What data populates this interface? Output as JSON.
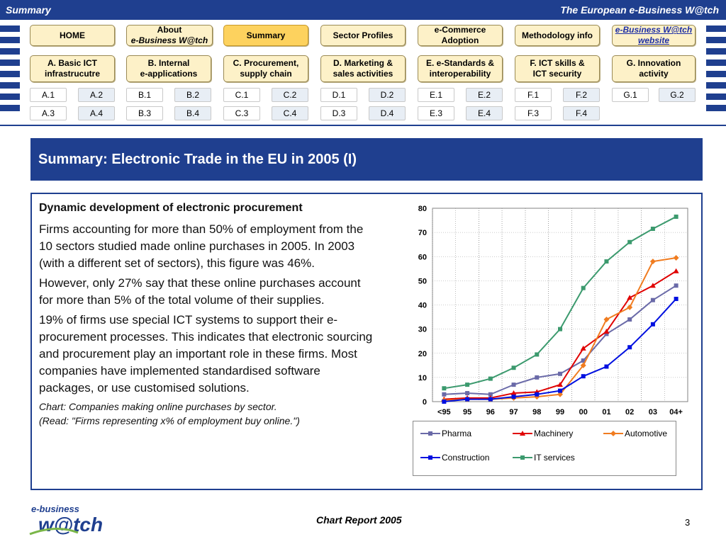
{
  "header": {
    "left_title": "Summary",
    "right_title": "The European e-Business W@tch"
  },
  "nav": {
    "top": [
      {
        "id": "home",
        "line1": "HOME"
      },
      {
        "id": "about",
        "line1": "About",
        "line2": "e-Business W@tch"
      },
      {
        "id": "summary",
        "line1": "Summary"
      },
      {
        "id": "sector",
        "line1": "Sector Profiles"
      },
      {
        "id": "ecommerce",
        "line1": "e-Commerce",
        "line2": "Adoption"
      },
      {
        "id": "method",
        "line1": "Methodology info"
      },
      {
        "id": "website",
        "line1": "e-Business W@tch",
        "line2": "website"
      }
    ],
    "modules": [
      {
        "id": "a",
        "line1": "A. Basic ICT",
        "line2": "infrastrucutre"
      },
      {
        "id": "b",
        "line1": "B. Internal",
        "line2": "e-applications"
      },
      {
        "id": "c",
        "line1": "C. Procurement,",
        "line2": "supply chain"
      },
      {
        "id": "d",
        "line1": "D. Marketing &",
        "line2": "sales activities"
      },
      {
        "id": "e",
        "line1": "E. e-Standards &",
        "line2": "interoperability"
      },
      {
        "id": "f",
        "line1": "F. ICT skills &",
        "line2": "ICT security"
      },
      {
        "id": "g",
        "line1": "G. Innovation",
        "line2": "activity"
      }
    ],
    "sub_row1": [
      "A.1",
      "A.2",
      "B.1",
      "B.2",
      "C.1",
      "C.2",
      "D.1",
      "D.2",
      "E.1",
      "E.2",
      "F.1",
      "F.2",
      "G.1",
      "G.2"
    ],
    "sub_row2": [
      "A.3",
      "A.4",
      "B.3",
      "B.4",
      "C.3",
      "C.4",
      "D.3",
      "D.4",
      "E.3",
      "E.4",
      "F.3",
      "F.4"
    ]
  },
  "slide": {
    "title": "Summary: Electronic Trade in the EU in 2005 (I)",
    "heading": "Dynamic development of electronic procurement",
    "paragraphs": [
      "Firms accounting for more than 50% of employment from the 10 sectors studied made online purchases in 2005. In 2003 (with a different set of sectors), this figure was 46%.",
      "However, only 27% say that these online purchases account for more than 5% of the total volume of their supplies.",
      "19% of firms use special ICT systems to support their e-procurement processes. This indicates that electronic sourcing and procurement play an important role in these firms. Most companies have implemented standardised software packages, or use customised solutions."
    ],
    "caption_line1": "Chart: Companies making online purchases by sector.",
    "caption_line2": "(Read: \"Firms representing x% of employment buy online.\")"
  },
  "chart_data": {
    "type": "line",
    "categories": [
      "<95",
      "95",
      "96",
      "97",
      "98",
      "99",
      "00",
      "01",
      "02",
      "03",
      "04+"
    ],
    "ylim": [
      0,
      80
    ],
    "yticks": [
      0,
      10,
      20,
      30,
      40,
      50,
      60,
      70,
      80
    ],
    "grid": true,
    "legend_position": "bottom",
    "series": [
      {
        "name": "Pharma",
        "color": "#6a6aa8",
        "marker": "square",
        "values": [
          3,
          3.5,
          3,
          7,
          10,
          11.5,
          17,
          28,
          34,
          42,
          48
        ]
      },
      {
        "name": "Machinery",
        "color": "#e00000",
        "marker": "triangle",
        "values": [
          1,
          1.5,
          1.5,
          3.5,
          4,
          7,
          22,
          29,
          43,
          48,
          54
        ]
      },
      {
        "name": "Automotive",
        "color": "#f07c20",
        "marker": "diamond",
        "values": [
          0.5,
          1,
          1,
          1.5,
          2,
          3,
          15,
          34,
          39,
          58,
          59.5
        ]
      },
      {
        "name": "Construction",
        "color": "#0010e0",
        "marker": "square",
        "values": [
          0,
          1,
          1,
          2,
          3,
          4.5,
          10.5,
          14.5,
          22.5,
          32,
          42.5
        ]
      },
      {
        "name": "IT services",
        "color": "#3c9a6e",
        "marker": "square",
        "values": [
          5.5,
          7,
          9.5,
          14,
          19.5,
          30,
          47,
          58,
          66,
          71.5,
          76.5
        ]
      }
    ]
  },
  "footer": {
    "logo_line1": "e-business",
    "logo_line2": "w@tch",
    "title": "Chart Report 2005",
    "page": "3"
  },
  "colors": {
    "brand": "#1f3f8f",
    "button": "#fdf1c8",
    "button_active": "#fdd25e"
  }
}
